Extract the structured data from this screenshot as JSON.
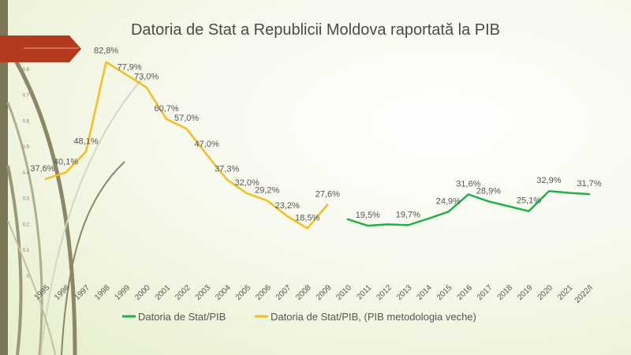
{
  "chart_data": {
    "type": "line",
    "title": "Datoria de Stat a Republicii Moldova raportată la PIB",
    "categories": [
      "1995",
      "1996",
      "1997",
      "1998",
      "1999",
      "2000",
      "2001",
      "2002",
      "2003",
      "2004",
      "2005",
      "2006",
      "2007",
      "2008",
      "2009",
      "2010",
      "2011",
      "2012",
      "2013",
      "2014",
      "2015",
      "2016",
      "2017",
      "2018",
      "2019",
      "2020",
      "2021",
      "2022/I"
    ],
    "ylim": [
      0,
      0.9
    ],
    "yticks": [
      "0",
      "0.1",
      "0.2",
      "0.3",
      "0.4",
      "0.5",
      "0.6",
      "0.7",
      "0.8"
    ],
    "legend_position": "bottom",
    "series": [
      {
        "name": "Datoria de Stat/PIB",
        "color": "#22b04b",
        "values": [
          null,
          null,
          null,
          null,
          null,
          null,
          null,
          null,
          null,
          null,
          null,
          null,
          null,
          null,
          null,
          0.22,
          0.195,
          0.2,
          0.197,
          0.222,
          0.249,
          0.316,
          0.289,
          0.27,
          0.251,
          0.329,
          0.322,
          0.317
        ],
        "labels": [
          null,
          null,
          null,
          null,
          null,
          null,
          null,
          null,
          null,
          null,
          null,
          null,
          null,
          null,
          null,
          null,
          "19,5%",
          null,
          "19,7%",
          null,
          "24,9%",
          "31,6%",
          "28,9%",
          null,
          "25,1%",
          "32,9%",
          null,
          "31,7%"
        ]
      },
      {
        "name": "Datoria de Stat/PIB, (PIB metodologia veche)",
        "color": "#f5bd1f",
        "values": [
          0.376,
          0.401,
          0.481,
          0.828,
          0.779,
          0.73,
          0.607,
          0.57,
          0.47,
          0.373,
          0.32,
          0.292,
          0.232,
          0.185,
          0.276,
          null,
          null,
          null,
          null,
          null,
          null,
          null,
          null,
          null,
          null,
          null,
          null,
          null
        ],
        "labels": [
          "37,6%",
          "40,1%",
          "48,1%",
          "82,8%",
          "77,9%",
          "73,0%",
          "60,7%",
          "57,0%",
          "47,0%",
          "37,3%",
          "32,0%",
          "29,2%",
          "23,2%",
          "18,5%",
          "27,6%",
          null,
          null,
          null,
          null,
          null,
          null,
          null,
          null,
          null,
          null,
          null,
          null,
          null
        ]
      }
    ]
  }
}
